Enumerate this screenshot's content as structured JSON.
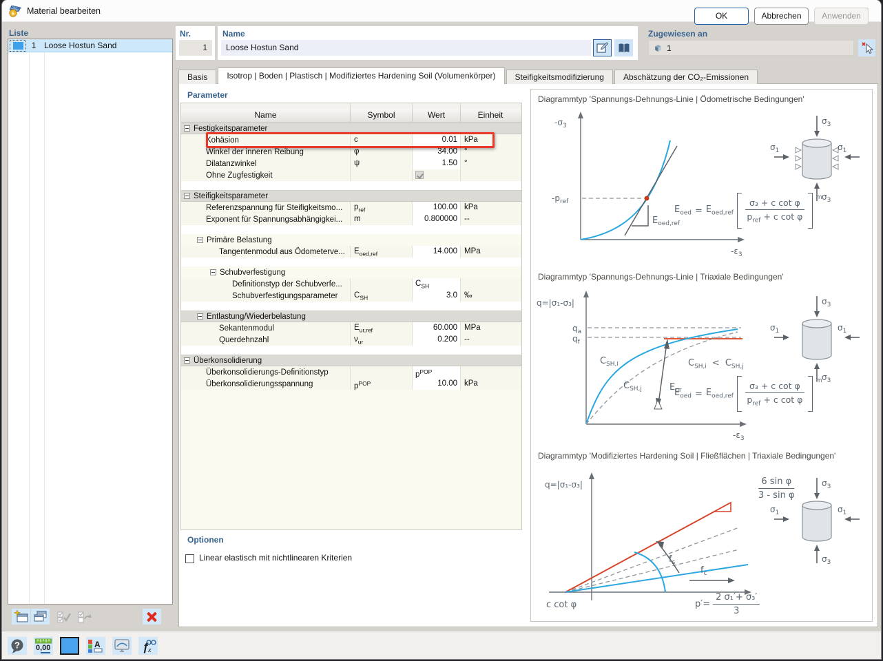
{
  "window": {
    "title": "Material bearbeiten"
  },
  "colors": {
    "material_color": "#3da0e8",
    "selection_bg": "#cde8fb",
    "highlight_red": "#e8392b",
    "curve_blue": "#2ba8e0",
    "curve_orange": "#e2593a",
    "curve_red": "#d8442a",
    "section_label": "#38638f"
  },
  "liste": {
    "label": "Liste",
    "items": [
      {
        "nr": "1",
        "name": "Loose Hostun Sand"
      }
    ]
  },
  "fields": {
    "nr": {
      "label": "Nr.",
      "value": "1"
    },
    "name": {
      "label": "Name",
      "value": "Loose Hostun Sand"
    },
    "assigned": {
      "label": "Zugewiesen an",
      "value": "1"
    }
  },
  "tabs": [
    {
      "label": "Basis",
      "active": false
    },
    {
      "label": "Isotrop | Boden | Plastisch | Modifiziertes Hardening Soil (Volumenkörper)",
      "active": true
    },
    {
      "label": "Steifigkeitsmodifizierung",
      "active": false
    },
    {
      "label": "Abschätzung der CO₂-Emissionen",
      "active": false
    }
  ],
  "parameters": {
    "section_label": "Parameter",
    "columns": [
      "Name",
      "Symbol",
      "Wert",
      "Einheit"
    ],
    "rows": [
      {
        "type": "group",
        "level": 0,
        "band": true,
        "name": "Festigkeitsparameter"
      },
      {
        "type": "item",
        "level": 1,
        "name": "Kohäsion",
        "sym": "c",
        "val": "0.01",
        "unit": "kPa",
        "highlight": true
      },
      {
        "type": "item",
        "level": 1,
        "name": "Winkel der inneren Reibung",
        "sym": "φ",
        "val": "34.00",
        "unit": "°"
      },
      {
        "type": "item",
        "level": 1,
        "name": "Dilatanzwinkel",
        "sym": "ψ",
        "val": "1.50",
        "unit": "°"
      },
      {
        "type": "item",
        "level": 1,
        "name": "Ohne Zugfestigkeit",
        "checkbox": true
      },
      {
        "type": "spacer"
      },
      {
        "type": "group",
        "level": 0,
        "band": true,
        "name": "Steifigkeitsparameter"
      },
      {
        "type": "item",
        "level": 1,
        "name": "Referenzspannung für Steifigkeitsmo...",
        "sym": "p",
        "symSub": "ref",
        "val": "100.00",
        "unit": "kPa"
      },
      {
        "type": "item",
        "level": 1,
        "name": "Exponent für Spannungsabhängigkei...",
        "sym": "m",
        "val": "0.800000",
        "unit": "--"
      },
      {
        "type": "spacer"
      },
      {
        "type": "group",
        "level": 1,
        "band": false,
        "name": "Primäre Belastung"
      },
      {
        "type": "item",
        "level": 2,
        "name": "Tangentenmodul aus Ödometerve...",
        "sym": "E",
        "symSub": "oed,ref",
        "val": "14.000",
        "unit": "MPa"
      },
      {
        "type": "spacer"
      },
      {
        "type": "group",
        "level": 2,
        "band": false,
        "name": "Schubverfestigung"
      },
      {
        "type": "item",
        "level": 3,
        "name": "Definitionstyp der Schubverfe...",
        "valText": "C",
        "valSub": "SH"
      },
      {
        "type": "item",
        "level": 3,
        "name": "Schubverfestigungsparameter",
        "sym": "C",
        "symSub": "SH",
        "val": "3.0",
        "unit": "‰"
      },
      {
        "type": "spacer"
      },
      {
        "type": "group",
        "level": 1,
        "band": true,
        "name": "Entlastung/Wiederbelastung"
      },
      {
        "type": "item",
        "level": 2,
        "name": "Sekantenmodul",
        "sym": "E",
        "symSub": "ur,ref",
        "val": "60.000",
        "unit": "MPa"
      },
      {
        "type": "item",
        "level": 2,
        "name": "Querdehnzahl",
        "sym": "ν",
        "symSub": "ur",
        "val": "0.200",
        "unit": "--"
      },
      {
        "type": "spacer"
      },
      {
        "type": "group",
        "level": 0,
        "band": true,
        "name": "Überkonsolidierung"
      },
      {
        "type": "item",
        "level": 1,
        "name": "Überkonsolidierungs-Definitionstyp",
        "valText": "p",
        "valSup": "POP"
      },
      {
        "type": "item",
        "level": 1,
        "name": "Überkonsolidierungsspannung",
        "sym": "p",
        "symSup": "POP",
        "val": "10.00",
        "unit": "kPa"
      }
    ]
  },
  "options": {
    "section_label": "Optionen",
    "checkbox_label": "Linear elastisch mit nichtlinearen Kriterien",
    "checked": false
  },
  "diagrams": [
    {
      "title": "Diagrammtyp 'Spannungs-Dehnungs-Linie | Ödometrische Bedingungen'",
      "labels": {
        "y_base": "-σ",
        "y_sub": "3",
        "x_base": "-ε",
        "x_sub": "3",
        "pref_base": "-p",
        "pref_sub": "ref",
        "slope_base": "E",
        "slope_sub": "oed,ref"
      },
      "specimen": {
        "top": "σ",
        "top_sub": "3",
        "side": "σ",
        "side_sub": "1",
        "bottom": "σ",
        "bottom_sub": "3"
      },
      "formula": {
        "lhs_base": "E",
        "lhs_sub": "oed",
        "eq": "=",
        "rhs_base": "E",
        "rhs_sub": "oed,ref",
        "num": "σ₃ + c cot φ",
        "den_base": "p",
        "den_sub": "ref",
        "den_tail": " + c cot φ",
        "exp": "m"
      }
    },
    {
      "title": "Diagrammtyp 'Spannungs-Dehnungs-Linie | Triaxiale Bedingungen'",
      "labels": {
        "y": "q=|σ₁-σ₃|",
        "qa_base": "q",
        "qa_sub": "a",
        "qf_base": "q",
        "qf_sub": "f",
        "x_base": "-ε",
        "x_sub": "3",
        "cshi_base": "C",
        "cshi_sub": "SH,i",
        "cshj_base": "C",
        "cshj_sub": "SH,j",
        "eur_base": "E",
        "eur_sub": "ur"
      },
      "ineq": {
        "l_base": "C",
        "l_sub": "SH,i",
        "op": "<",
        "r_base": "C",
        "r_sub": "SH,j"
      },
      "specimen": {
        "top": "σ",
        "top_sub": "3",
        "side": "σ",
        "side_sub": "1",
        "bottom": "σ",
        "bottom_sub": "3"
      },
      "formula": {
        "lhs_base": "E",
        "lhs_sub": "oed",
        "eq": "=",
        "rhs_base": "E",
        "rhs_sub": "oed,ref",
        "num": "σ₃ + c cot φ",
        "den_base": "p",
        "den_sub": "ref",
        "den_tail": " + c cot φ",
        "exp": "m"
      }
    },
    {
      "title": "Diagrammtyp 'Modifiziertes Hardening Soil | Fließflächen | Triaxiale Bedingungen'",
      "labels": {
        "y": "q=|σ₁-σ₃|",
        "ccot": "c cot φ",
        "fs_base": "f",
        "fs_sub": "s",
        "fc_base": "f",
        "fc_sub": "c"
      },
      "slope": {
        "num": "6 sin φ",
        "den": "3 - sin φ"
      },
      "xlabel": {
        "pre": "p′=",
        "num": "2 σ₁′+ σ₃′",
        "den": "3"
      },
      "specimen": {
        "top": "σ",
        "top_sub": "3",
        "side": "σ",
        "side_sub": "1",
        "bottom": "σ",
        "bottom_sub": "3"
      }
    }
  ],
  "footer": {
    "ok": "OK",
    "cancel": "Abbrechen",
    "apply": "Anwenden"
  },
  "bottom_toolbar": {
    "help_glyph": "?",
    "units_label": "0,00",
    "display_props_glyph": "A",
    "formula_glyph": "ƒ",
    "formula_sub": "x"
  },
  "icons": {
    "titlebar": [
      "material-icon",
      "minimize-icon",
      "maximize-icon",
      "close-icon"
    ],
    "name_buttons": [
      "rename-icon",
      "library-book-icon"
    ],
    "assigned_button": "deselect-pointer-icon",
    "list_toolbar": [
      "new-material-icon",
      "copy-material-icon",
      "check-all-icon",
      "toggle-selection-icon",
      "delete-x-icon"
    ],
    "bottom_toolbar": [
      "help-icon",
      "decimal-places-icon",
      "color-swatch-icon",
      "display-properties-icon",
      "rendering-icon",
      "formula-icon"
    ],
    "material_badge": "6"
  }
}
